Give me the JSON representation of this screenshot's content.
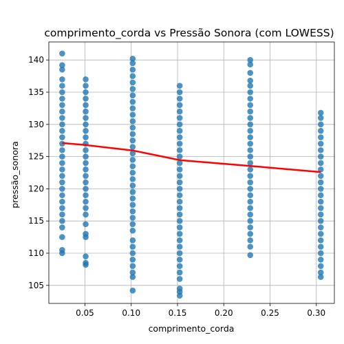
{
  "chart_data": {
    "type": "scatter",
    "title": "comprimento_corda vs Pressão Sonora (com LOWESS)",
    "xlabel": "comprimento_corda",
    "ylabel": "pressão_sonora",
    "xlim": [
      0.011,
      0.3195
    ],
    "ylim": [
      102.2,
      142.8
    ],
    "xticks": [
      0.05,
      0.1,
      0.15,
      0.2,
      0.25,
      0.3
    ],
    "xtick_labels": [
      "0.05",
      "0.10",
      "0.15",
      "0.20",
      "0.25",
      "0.30"
    ],
    "yticks": [
      105,
      110,
      115,
      120,
      125,
      130,
      135,
      140
    ],
    "ytick_labels": [
      "105",
      "110",
      "115",
      "120",
      "125",
      "130",
      "135",
      "140"
    ],
    "grid": true,
    "legend": "none",
    "series": [
      {
        "type": "scatter",
        "color": "#1f77b4",
        "points": [
          {
            "x": 0.0254,
            "y": 141.0
          },
          {
            "x": 0.0254,
            "y": 139.2
          },
          {
            "x": 0.0254,
            "y": 138.5
          },
          {
            "x": 0.0254,
            "y": 137.0
          },
          {
            "x": 0.0254,
            "y": 136.0
          },
          {
            "x": 0.0254,
            "y": 135.0
          },
          {
            "x": 0.0254,
            "y": 134.0
          },
          {
            "x": 0.0254,
            "y": 133.0
          },
          {
            "x": 0.0254,
            "y": 132.0
          },
          {
            "x": 0.0254,
            "y": 131.0
          },
          {
            "x": 0.0254,
            "y": 130.0
          },
          {
            "x": 0.0254,
            "y": 129.0
          },
          {
            "x": 0.0254,
            "y": 128.0
          },
          {
            "x": 0.0254,
            "y": 127.0
          },
          {
            "x": 0.0254,
            "y": 126.0
          },
          {
            "x": 0.0254,
            "y": 125.0
          },
          {
            "x": 0.0254,
            "y": 124.0
          },
          {
            "x": 0.0254,
            "y": 123.0
          },
          {
            "x": 0.0254,
            "y": 122.0
          },
          {
            "x": 0.0254,
            "y": 121.0
          },
          {
            "x": 0.0254,
            "y": 120.0
          },
          {
            "x": 0.0254,
            "y": 119.0
          },
          {
            "x": 0.0254,
            "y": 118.0
          },
          {
            "x": 0.0254,
            "y": 117.0
          },
          {
            "x": 0.0254,
            "y": 116.0
          },
          {
            "x": 0.0254,
            "y": 115.0
          },
          {
            "x": 0.0254,
            "y": 114.0
          },
          {
            "x": 0.0254,
            "y": 112.5
          },
          {
            "x": 0.0254,
            "y": 110.5
          },
          {
            "x": 0.0254,
            "y": 110.0
          },
          {
            "x": 0.0508,
            "y": 137.0
          },
          {
            "x": 0.0508,
            "y": 136.0
          },
          {
            "x": 0.0508,
            "y": 135.0
          },
          {
            "x": 0.0508,
            "y": 134.0
          },
          {
            "x": 0.0508,
            "y": 133.0
          },
          {
            "x": 0.0508,
            "y": 132.0
          },
          {
            "x": 0.0508,
            "y": 131.0
          },
          {
            "x": 0.0508,
            "y": 130.0
          },
          {
            "x": 0.0508,
            "y": 129.0
          },
          {
            "x": 0.0508,
            "y": 128.0
          },
          {
            "x": 0.0508,
            "y": 127.0
          },
          {
            "x": 0.0508,
            "y": 126.0
          },
          {
            "x": 0.0508,
            "y": 125.0
          },
          {
            "x": 0.0508,
            "y": 124.0
          },
          {
            "x": 0.0508,
            "y": 123.0
          },
          {
            "x": 0.0508,
            "y": 122.0
          },
          {
            "x": 0.0508,
            "y": 121.0
          },
          {
            "x": 0.0508,
            "y": 120.0
          },
          {
            "x": 0.0508,
            "y": 119.0
          },
          {
            "x": 0.0508,
            "y": 118.0
          },
          {
            "x": 0.0508,
            "y": 117.0
          },
          {
            "x": 0.0508,
            "y": 116.0
          },
          {
            "x": 0.0508,
            "y": 114.5
          },
          {
            "x": 0.0508,
            "y": 113.0
          },
          {
            "x": 0.0508,
            "y": 112.5
          },
          {
            "x": 0.0508,
            "y": 109.5
          },
          {
            "x": 0.0508,
            "y": 108.5
          },
          {
            "x": 0.0508,
            "y": 108.2
          },
          {
            "x": 0.1016,
            "y": 140.2
          },
          {
            "x": 0.1016,
            "y": 139.5
          },
          {
            "x": 0.1016,
            "y": 138.5
          },
          {
            "x": 0.1016,
            "y": 137.5
          },
          {
            "x": 0.1016,
            "y": 136.5
          },
          {
            "x": 0.1016,
            "y": 135.5
          },
          {
            "x": 0.1016,
            "y": 134.5
          },
          {
            "x": 0.1016,
            "y": 133.5
          },
          {
            "x": 0.1016,
            "y": 132.5
          },
          {
            "x": 0.1016,
            "y": 131.5
          },
          {
            "x": 0.1016,
            "y": 130.5
          },
          {
            "x": 0.1016,
            "y": 129.5
          },
          {
            "x": 0.1016,
            "y": 128.5
          },
          {
            "x": 0.1016,
            "y": 127.5
          },
          {
            "x": 0.1016,
            "y": 126.5
          },
          {
            "x": 0.1016,
            "y": 125.5
          },
          {
            "x": 0.1016,
            "y": 124.5
          },
          {
            "x": 0.1016,
            "y": 123.5
          },
          {
            "x": 0.1016,
            "y": 122.5
          },
          {
            "x": 0.1016,
            "y": 121.5
          },
          {
            "x": 0.1016,
            "y": 120.5
          },
          {
            "x": 0.1016,
            "y": 119.5
          },
          {
            "x": 0.1016,
            "y": 118.5
          },
          {
            "x": 0.1016,
            "y": 117.5
          },
          {
            "x": 0.1016,
            "y": 116.5
          },
          {
            "x": 0.1016,
            "y": 115.5
          },
          {
            "x": 0.1016,
            "y": 114.5
          },
          {
            "x": 0.1016,
            "y": 113.5
          },
          {
            "x": 0.1016,
            "y": 112.0
          },
          {
            "x": 0.1016,
            "y": 111.0
          },
          {
            "x": 0.1016,
            "y": 110.0
          },
          {
            "x": 0.1016,
            "y": 109.0
          },
          {
            "x": 0.1016,
            "y": 108.0
          },
          {
            "x": 0.1016,
            "y": 107.0
          },
          {
            "x": 0.1016,
            "y": 106.3
          },
          {
            "x": 0.1016,
            "y": 104.2
          },
          {
            "x": 0.1524,
            "y": 136.0
          },
          {
            "x": 0.1524,
            "y": 135.0
          },
          {
            "x": 0.1524,
            "y": 134.0
          },
          {
            "x": 0.1524,
            "y": 133.0
          },
          {
            "x": 0.1524,
            "y": 132.0
          },
          {
            "x": 0.1524,
            "y": 131.0
          },
          {
            "x": 0.1524,
            "y": 130.0
          },
          {
            "x": 0.1524,
            "y": 129.0
          },
          {
            "x": 0.1524,
            "y": 128.0
          },
          {
            "x": 0.1524,
            "y": 127.0
          },
          {
            "x": 0.1524,
            "y": 126.0
          },
          {
            "x": 0.1524,
            "y": 125.0
          },
          {
            "x": 0.1524,
            "y": 124.0
          },
          {
            "x": 0.1524,
            "y": 123.0
          },
          {
            "x": 0.1524,
            "y": 122.0
          },
          {
            "x": 0.1524,
            "y": 121.0
          },
          {
            "x": 0.1524,
            "y": 120.0
          },
          {
            "x": 0.1524,
            "y": 119.0
          },
          {
            "x": 0.1524,
            "y": 118.0
          },
          {
            "x": 0.1524,
            "y": 117.0
          },
          {
            "x": 0.1524,
            "y": 116.0
          },
          {
            "x": 0.1524,
            "y": 115.0
          },
          {
            "x": 0.1524,
            "y": 114.0
          },
          {
            "x": 0.1524,
            "y": 113.0
          },
          {
            "x": 0.1524,
            "y": 112.0
          },
          {
            "x": 0.1524,
            "y": 111.0
          },
          {
            "x": 0.1524,
            "y": 110.0
          },
          {
            "x": 0.1524,
            "y": 109.0
          },
          {
            "x": 0.1524,
            "y": 108.0
          },
          {
            "x": 0.1524,
            "y": 107.0
          },
          {
            "x": 0.1524,
            "y": 106.0
          },
          {
            "x": 0.1524,
            "y": 104.5
          },
          {
            "x": 0.1524,
            "y": 104.0
          },
          {
            "x": 0.1524,
            "y": 103.4
          },
          {
            "x": 0.2286,
            "y": 140.0
          },
          {
            "x": 0.2286,
            "y": 139.3
          },
          {
            "x": 0.2286,
            "y": 138.0
          },
          {
            "x": 0.2286,
            "y": 136.8
          },
          {
            "x": 0.2286,
            "y": 136.0
          },
          {
            "x": 0.2286,
            "y": 135.0
          },
          {
            "x": 0.2286,
            "y": 134.0
          },
          {
            "x": 0.2286,
            "y": 133.0
          },
          {
            "x": 0.2286,
            "y": 132.0
          },
          {
            "x": 0.2286,
            "y": 131.0
          },
          {
            "x": 0.2286,
            "y": 130.0
          },
          {
            "x": 0.2286,
            "y": 129.0
          },
          {
            "x": 0.2286,
            "y": 128.0
          },
          {
            "x": 0.2286,
            "y": 127.0
          },
          {
            "x": 0.2286,
            "y": 126.0
          },
          {
            "x": 0.2286,
            "y": 125.0
          },
          {
            "x": 0.2286,
            "y": 124.0
          },
          {
            "x": 0.2286,
            "y": 123.0
          },
          {
            "x": 0.2286,
            "y": 122.0
          },
          {
            "x": 0.2286,
            "y": 121.0
          },
          {
            "x": 0.2286,
            "y": 120.0
          },
          {
            "x": 0.2286,
            "y": 119.0
          },
          {
            "x": 0.2286,
            "y": 118.0
          },
          {
            "x": 0.2286,
            "y": 117.0
          },
          {
            "x": 0.2286,
            "y": 116.0
          },
          {
            "x": 0.2286,
            "y": 115.0
          },
          {
            "x": 0.2286,
            "y": 114.0
          },
          {
            "x": 0.2286,
            "y": 113.0
          },
          {
            "x": 0.2286,
            "y": 112.0
          },
          {
            "x": 0.2286,
            "y": 111.0
          },
          {
            "x": 0.2286,
            "y": 109.7
          },
          {
            "x": 0.3048,
            "y": 131.8
          },
          {
            "x": 0.3048,
            "y": 131.0
          },
          {
            "x": 0.3048,
            "y": 130.0
          },
          {
            "x": 0.3048,
            "y": 129.0
          },
          {
            "x": 0.3048,
            "y": 128.0
          },
          {
            "x": 0.3048,
            "y": 127.0
          },
          {
            "x": 0.3048,
            "y": 126.0
          },
          {
            "x": 0.3048,
            "y": 125.0
          },
          {
            "x": 0.3048,
            "y": 124.0
          },
          {
            "x": 0.3048,
            "y": 123.0
          },
          {
            "x": 0.3048,
            "y": 122.0
          },
          {
            "x": 0.3048,
            "y": 121.0
          },
          {
            "x": 0.3048,
            "y": 120.0
          },
          {
            "x": 0.3048,
            "y": 119.0
          },
          {
            "x": 0.3048,
            "y": 118.0
          },
          {
            "x": 0.3048,
            "y": 117.0
          },
          {
            "x": 0.3048,
            "y": 116.0
          },
          {
            "x": 0.3048,
            "y": 115.0
          },
          {
            "x": 0.3048,
            "y": 114.0
          },
          {
            "x": 0.3048,
            "y": 113.0
          },
          {
            "x": 0.3048,
            "y": 112.0
          },
          {
            "x": 0.3048,
            "y": 111.0
          },
          {
            "x": 0.3048,
            "y": 110.0
          },
          {
            "x": 0.3048,
            "y": 109.0
          },
          {
            "x": 0.3048,
            "y": 108.0
          },
          {
            "x": 0.3048,
            "y": 107.0
          },
          {
            "x": 0.3048,
            "y": 106.3
          }
        ]
      },
      {
        "type": "line",
        "color": "#ff0000",
        "x": [
          0.0254,
          0.0508,
          0.1016,
          0.1524,
          0.2286,
          0.3048
        ],
        "y": [
          127.1,
          126.8,
          125.95,
          124.45,
          123.55,
          122.6
        ]
      }
    ]
  }
}
